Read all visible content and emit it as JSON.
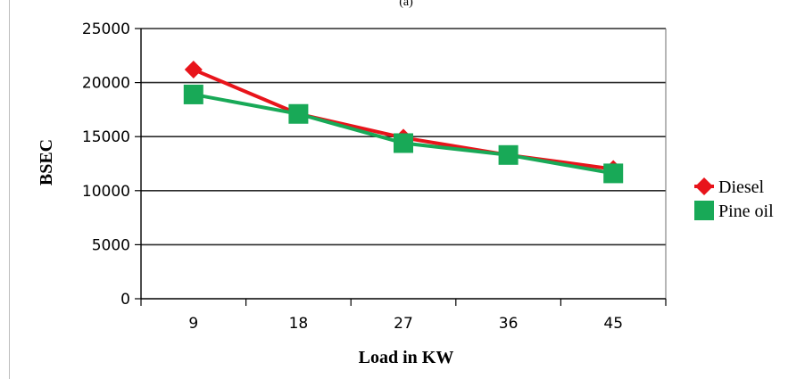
{
  "caption": "(a)",
  "chart_data": {
    "type": "line",
    "title": "",
    "xlabel": "Load in KW",
    "ylabel": "BSEC",
    "categories": [
      "9",
      "18",
      "27",
      "36",
      "45"
    ],
    "ylim": [
      0,
      25000
    ],
    "yticks": [
      "0",
      "5000",
      "10000",
      "15000",
      "20000",
      "25000"
    ],
    "grid": "horizontal",
    "legend_position": "right",
    "series": [
      {
        "name": "Diesel",
        "values": [
          21200,
          17100,
          14900,
          13300,
          12000
        ],
        "color": "#e8141b",
        "marker": "diamond"
      },
      {
        "name": "Pine oil",
        "values": [
          18900,
          17100,
          14400,
          13300,
          11600
        ],
        "color": "#18a957",
        "marker": "square"
      }
    ]
  }
}
